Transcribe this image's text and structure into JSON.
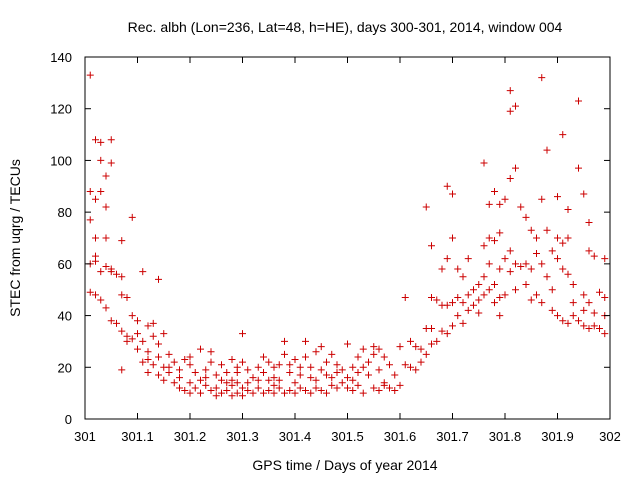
{
  "chart_data": {
    "type": "scatter",
    "title": "Rec. albh (Lon=236, Lat=48, h=HE), days 300-301, 2014, window 004",
    "xlabel": "GPS time / Days of year 2014",
    "ylabel": "STEC from uqrg / TECUs",
    "xlim": [
      301,
      302
    ],
    "ylim": [
      0,
      140
    ],
    "xticks": [
      "301",
      "301.1",
      "301.2",
      "301.3",
      "301.4",
      "301.5",
      "301.6",
      "301.7",
      "301.8",
      "301.9",
      "302"
    ],
    "yticks": [
      "0",
      "20",
      "40",
      "60",
      "80",
      "100",
      "120",
      "140"
    ],
    "grid": false,
    "marker": "+",
    "color": "#cc0000",
    "series": [
      {
        "points": [
          [
            301.01,
            133
          ],
          [
            301.02,
            108
          ],
          [
            301.03,
            107
          ],
          [
            301.05,
            108
          ],
          [
            301.03,
            100
          ],
          [
            301.05,
            99
          ],
          [
            301.04,
            94
          ],
          [
            301.01,
            88
          ],
          [
            301.03,
            88
          ],
          [
            301.02,
            85
          ],
          [
            301.04,
            82
          ],
          [
            301.01,
            77
          ],
          [
            301.02,
            70
          ],
          [
            301.04,
            70
          ],
          [
            301.07,
            69
          ],
          [
            301.01,
            60
          ],
          [
            301.02,
            63
          ],
          [
            301.03,
            57
          ],
          [
            301.04,
            59
          ],
          [
            301.05,
            57
          ],
          [
            301.06,
            56
          ],
          [
            301.07,
            55
          ],
          [
            301.01,
            49
          ],
          [
            301.02,
            48
          ],
          [
            301.03,
            46
          ],
          [
            301.04,
            43
          ],
          [
            301.07,
            48
          ],
          [
            301.08,
            47
          ],
          [
            301.05,
            38
          ],
          [
            301.07,
            34
          ],
          [
            301.08,
            32
          ],
          [
            301.07,
            19
          ],
          [
            301.09,
            78
          ],
          [
            301.11,
            57
          ],
          [
            301.14,
            54
          ],
          [
            301.09,
            40
          ],
          [
            301.1,
            38
          ],
          [
            301.12,
            36
          ],
          [
            301.13,
            37
          ],
          [
            301.09,
            31
          ],
          [
            301.11,
            30
          ],
          [
            301.13,
            32
          ],
          [
            301.15,
            33
          ],
          [
            301.1,
            27
          ],
          [
            301.12,
            26
          ],
          [
            301.14,
            24
          ],
          [
            301.16,
            25
          ],
          [
            301.11,
            22
          ],
          [
            301.13,
            21
          ],
          [
            301.15,
            20
          ],
          [
            301.17,
            22
          ],
          [
            301.12,
            18
          ],
          [
            301.14,
            17
          ],
          [
            301.16,
            18
          ],
          [
            301.18,
            19
          ],
          [
            301.19,
            23
          ],
          [
            301.2,
            21
          ],
          [
            301.15,
            15
          ],
          [
            301.17,
            14
          ],
          [
            301.18,
            12
          ],
          [
            301.19,
            11
          ],
          [
            301.2,
            14
          ],
          [
            301.2,
            10
          ],
          [
            301.21,
            12
          ],
          [
            301.22,
            10
          ],
          [
            301.22,
            15
          ],
          [
            301.23,
            13
          ],
          [
            301.24,
            11
          ],
          [
            301.25,
            9
          ],
          [
            301.25,
            12
          ],
          [
            301.26,
            10
          ],
          [
            301.27,
            11
          ],
          [
            301.28,
            9
          ],
          [
            301.28,
            13
          ],
          [
            301.29,
            10
          ],
          [
            301.3,
            9
          ],
          [
            301.3,
            12
          ],
          [
            301.31,
            11
          ],
          [
            301.32,
            10
          ],
          [
            301.23,
            19
          ],
          [
            301.24,
            22
          ],
          [
            301.25,
            17
          ],
          [
            301.27,
            18
          ],
          [
            301.28,
            15
          ],
          [
            301.29,
            18
          ],
          [
            301.3,
            22
          ],
          [
            301.31,
            19
          ],
          [
            301.32,
            16
          ],
          [
            301.22,
            27
          ],
          [
            301.24,
            26
          ],
          [
            301.28,
            23
          ],
          [
            301.3,
            33
          ],
          [
            301.33,
            20
          ],
          [
            301.26,
            15
          ],
          [
            301.29,
            14
          ],
          [
            301.33,
            12
          ],
          [
            301.34,
            10
          ],
          [
            301.35,
            11
          ],
          [
            301.36,
            10
          ],
          [
            301.36,
            13
          ],
          [
            301.37,
            12
          ],
          [
            301.38,
            10
          ],
          [
            301.39,
            11
          ],
          [
            301.4,
            10
          ],
          [
            301.41,
            12
          ],
          [
            301.42,
            11
          ],
          [
            301.43,
            10
          ],
          [
            301.44,
            12
          ],
          [
            301.45,
            11
          ],
          [
            301.46,
            10
          ],
          [
            301.47,
            13
          ],
          [
            301.48,
            12
          ],
          [
            301.34,
            18
          ],
          [
            301.35,
            22
          ],
          [
            301.36,
            16
          ],
          [
            301.37,
            21
          ],
          [
            301.38,
            25
          ],
          [
            301.39,
            18
          ],
          [
            301.4,
            23
          ],
          [
            301.41,
            17
          ],
          [
            301.42,
            24
          ],
          [
            301.43,
            20
          ],
          [
            301.44,
            26
          ],
          [
            301.45,
            19
          ],
          [
            301.46,
            22
          ],
          [
            301.47,
            25
          ],
          [
            301.48,
            18
          ],
          [
            301.35,
            15
          ],
          [
            301.38,
            30
          ],
          [
            301.42,
            30
          ],
          [
            301.45,
            28
          ],
          [
            301.4,
            14
          ],
          [
            301.44,
            15
          ],
          [
            301.47,
            16
          ],
          [
            301.49,
            14
          ],
          [
            301.5,
            16
          ],
          [
            301.51,
            15
          ],
          [
            301.52,
            18
          ],
          [
            301.53,
            20
          ],
          [
            301.54,
            22
          ],
          [
            301.55,
            25
          ],
          [
            301.56,
            27
          ],
          [
            301.57,
            24
          ],
          [
            301.58,
            21
          ],
          [
            301.5,
            29
          ],
          [
            301.53,
            27
          ],
          [
            301.55,
            28
          ],
          [
            301.5,
            12
          ],
          [
            301.51,
            11
          ],
          [
            301.52,
            13
          ],
          [
            301.53,
            10
          ],
          [
            301.55,
            12
          ],
          [
            301.56,
            11
          ],
          [
            301.57,
            13
          ],
          [
            301.58,
            12
          ],
          [
            301.59,
            11
          ],
          [
            301.6,
            13
          ],
          [
            301.6,
            28
          ],
          [
            301.61,
            47
          ],
          [
            301.61,
            21
          ],
          [
            301.62,
            20
          ],
          [
            301.62,
            30
          ],
          [
            301.63,
            19
          ],
          [
            301.63,
            28
          ],
          [
            301.64,
            22
          ],
          [
            301.64,
            27
          ],
          [
            301.65,
            82
          ],
          [
            301.65,
            35
          ],
          [
            301.65,
            25
          ],
          [
            301.66,
            35
          ],
          [
            301.66,
            67
          ],
          [
            301.66,
            47
          ],
          [
            301.66,
            29
          ],
          [
            301.67,
            46
          ],
          [
            301.67,
            30
          ],
          [
            301.68,
            58
          ],
          [
            301.68,
            44
          ],
          [
            301.68,
            34
          ],
          [
            301.69,
            90
          ],
          [
            301.69,
            62
          ],
          [
            301.69,
            44
          ],
          [
            301.69,
            33
          ],
          [
            301.7,
            87
          ],
          [
            301.7,
            70
          ],
          [
            301.7,
            45
          ],
          [
            301.7,
            36
          ],
          [
            301.71,
            58
          ],
          [
            301.71,
            47
          ],
          [
            301.71,
            40
          ],
          [
            301.72,
            55
          ],
          [
            301.72,
            45
          ],
          [
            301.72,
            37
          ],
          [
            301.73,
            62
          ],
          [
            301.73,
            48
          ],
          [
            301.73,
            42
          ],
          [
            301.74,
            50
          ],
          [
            301.74,
            44
          ],
          [
            301.75,
            52
          ],
          [
            301.75,
            46
          ],
          [
            301.75,
            41
          ],
          [
            301.76,
            99
          ],
          [
            301.76,
            67
          ],
          [
            301.76,
            55
          ],
          [
            301.76,
            48
          ],
          [
            301.77,
            83
          ],
          [
            301.77,
            70
          ],
          [
            301.77,
            60
          ],
          [
            301.77,
            50
          ],
          [
            301.78,
            88
          ],
          [
            301.78,
            69
          ],
          [
            301.78,
            52
          ],
          [
            301.78,
            45
          ],
          [
            301.79,
            83
          ],
          [
            301.79,
            72
          ],
          [
            301.79,
            58
          ],
          [
            301.79,
            47
          ],
          [
            301.79,
            40
          ],
          [
            301.8,
            85
          ],
          [
            301.8,
            62
          ],
          [
            301.8,
            48
          ],
          [
            301.81,
            127
          ],
          [
            301.81,
            119
          ],
          [
            301.81,
            93
          ],
          [
            301.81,
            65
          ],
          [
            301.81,
            57
          ],
          [
            301.82,
            121
          ],
          [
            301.82,
            97
          ],
          [
            301.82,
            60
          ],
          [
            301.82,
            50
          ],
          [
            301.83,
            82
          ],
          [
            301.83,
            59
          ],
          [
            301.84,
            78
          ],
          [
            301.84,
            60
          ],
          [
            301.84,
            52
          ],
          [
            301.85,
            73
          ],
          [
            301.85,
            58
          ],
          [
            301.85,
            46
          ],
          [
            301.86,
            70
          ],
          [
            301.86,
            64
          ],
          [
            301.86,
            48
          ],
          [
            301.87,
            132
          ],
          [
            301.87,
            85
          ],
          [
            301.87,
            60
          ],
          [
            301.87,
            45
          ],
          [
            301.88,
            104
          ],
          [
            301.88,
            73
          ],
          [
            301.88,
            55
          ],
          [
            301.89,
            65
          ],
          [
            301.89,
            50
          ],
          [
            301.89,
            42
          ],
          [
            301.9,
            86
          ],
          [
            301.9,
            70
          ],
          [
            301.9,
            62
          ],
          [
            301.9,
            40
          ],
          [
            301.91,
            110
          ],
          [
            301.91,
            68
          ],
          [
            301.91,
            58
          ],
          [
            301.91,
            38
          ],
          [
            301.92,
            81
          ],
          [
            301.92,
            70
          ],
          [
            301.92,
            56
          ],
          [
            301.92,
            37
          ],
          [
            301.93,
            52
          ],
          [
            301.93,
            45
          ],
          [
            301.93,
            40
          ],
          [
            301.94,
            123
          ],
          [
            301.94,
            97
          ],
          [
            301.94,
            38
          ],
          [
            301.95,
            87
          ],
          [
            301.95,
            48
          ],
          [
            301.95,
            42
          ],
          [
            301.95,
            36
          ],
          [
            301.96,
            76
          ],
          [
            301.96,
            65
          ],
          [
            301.96,
            45
          ],
          [
            301.96,
            35
          ],
          [
            301.97,
            63
          ],
          [
            301.97,
            41
          ],
          [
            301.97,
            36
          ],
          [
            301.98,
            49
          ],
          [
            301.98,
            35
          ],
          [
            301.99,
            62
          ],
          [
            301.99,
            47
          ],
          [
            301.99,
            40
          ],
          [
            301.99,
            33
          ],
          [
            301.02,
            61
          ],
          [
            301.05,
            58
          ],
          [
            301.06,
            37
          ],
          [
            301.08,
            30
          ],
          [
            301.1,
            33
          ],
          [
            301.12,
            23
          ],
          [
            301.14,
            29
          ],
          [
            301.16,
            20
          ],
          [
            301.18,
            16
          ],
          [
            301.2,
            24
          ],
          [
            301.21,
            18
          ],
          [
            301.23,
            16
          ],
          [
            301.26,
            21
          ],
          [
            301.27,
            14
          ],
          [
            301.29,
            20
          ],
          [
            301.31,
            14
          ],
          [
            301.33,
            15
          ],
          [
            301.34,
            24
          ],
          [
            301.36,
            20
          ],
          [
            301.37,
            15
          ],
          [
            301.39,
            21
          ],
          [
            301.41,
            20
          ],
          [
            301.43,
            16
          ],
          [
            301.46,
            17
          ],
          [
            301.48,
            21
          ],
          [
            301.49,
            19
          ],
          [
            301.51,
            20
          ],
          [
            301.52,
            24
          ],
          [
            301.54,
            17
          ],
          [
            301.56,
            19
          ],
          [
            301.57,
            14
          ],
          [
            301.59,
            17
          ]
        ]
      }
    ]
  }
}
